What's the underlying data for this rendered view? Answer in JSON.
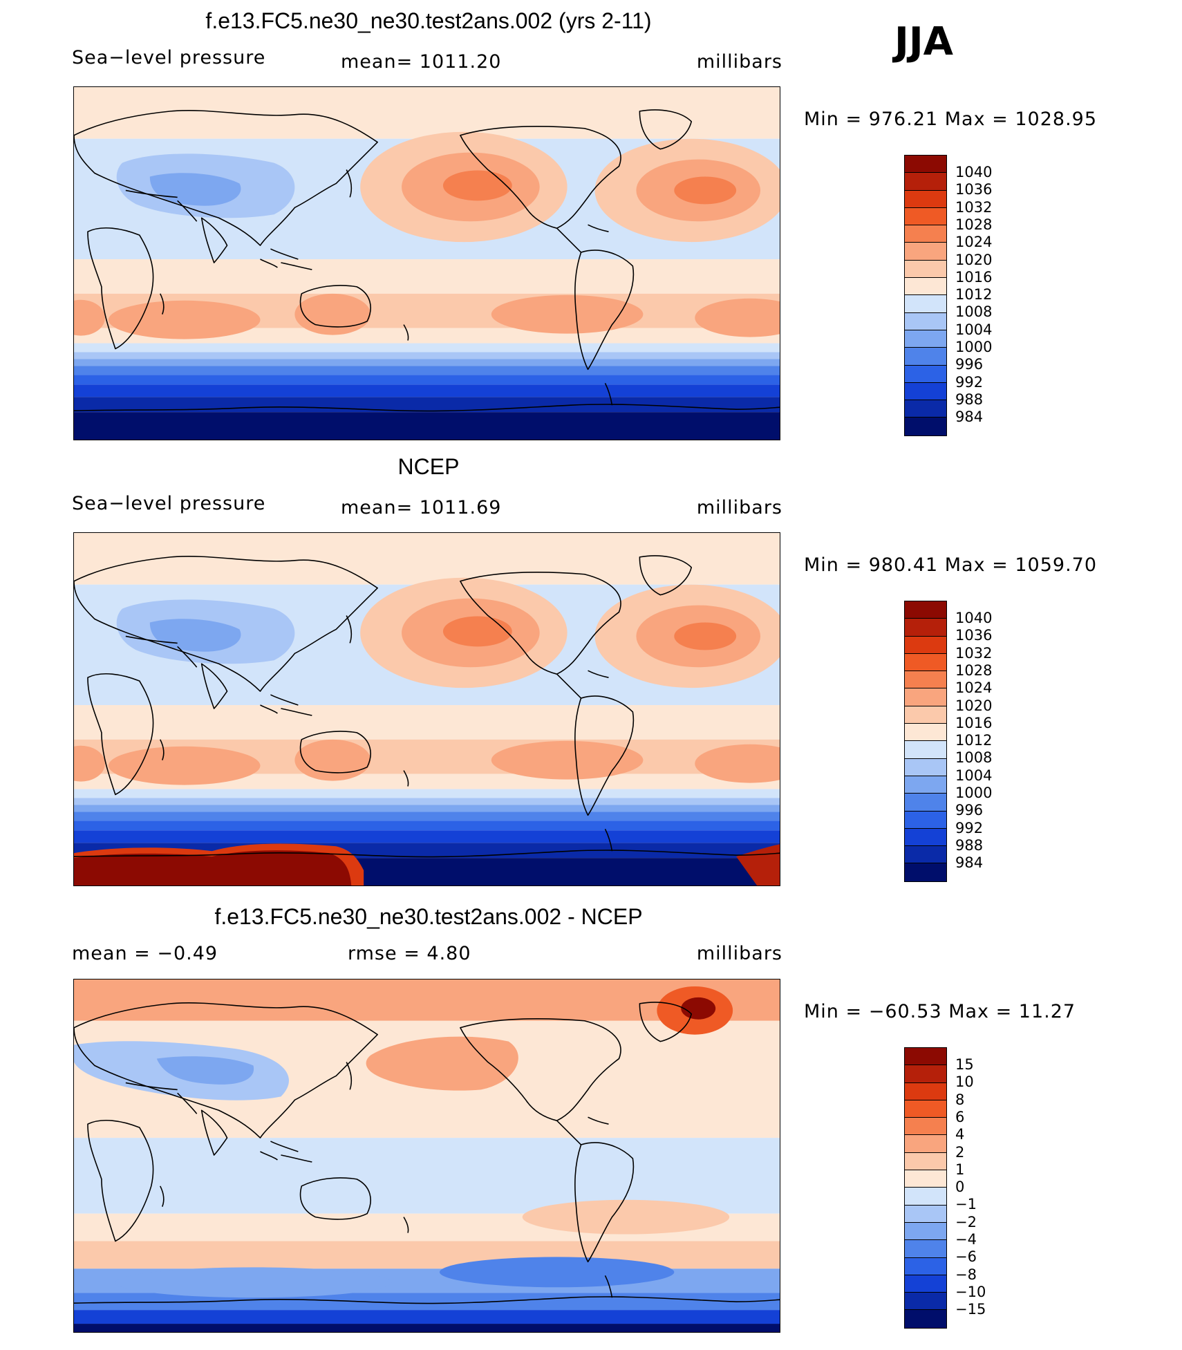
{
  "season": "JJA",
  "colors": {
    "d1": "#000e6b",
    "d2": "#0a2aa8",
    "d3": "#1441d6",
    "d4": "#2c62e6",
    "d5": "#4f83ea",
    "d6": "#7da7f0",
    "d7": "#a9c6f6",
    "d8": "#d2e4fa",
    "w0": "#fde7d5",
    "w1": "#fbc9ab",
    "w2": "#f9a57e",
    "w3": "#f5804f",
    "w4": "#ef5a25",
    "w5": "#dc3a10",
    "w6": "#b5200a",
    "w7": "#8c0a02",
    "land": "#000000"
  },
  "panels": [
    {
      "title": "f.e13.FC5.ne30_ne30.test2ans.002 (yrs 2-11)",
      "left": "Sea−level pressure",
      "center": "mean=  1011.20",
      "right": "millibars",
      "minmax": "Min  =  976.21  Max  =  1028.95",
      "legend_labels": [
        "1040",
        "1036",
        "1032",
        "1028",
        "1024",
        "1020",
        "1016",
        "1012",
        "1008",
        "1004",
        "1000",
        "996",
        "992",
        "988",
        "984"
      ],
      "legend_colors": [
        "w7",
        "w6",
        "w5",
        "w4",
        "w3",
        "w2",
        "w1",
        "w0",
        "d8",
        "d7",
        "d6",
        "d5",
        "d4",
        "d3",
        "d2",
        "d1"
      ]
    },
    {
      "title": "NCEP",
      "left": "Sea−level pressure",
      "center": "mean=  1011.69",
      "right": "millibars",
      "minmax": "Min  =  980.41  Max  =  1059.70",
      "legend_labels": [
        "1040",
        "1036",
        "1032",
        "1028",
        "1024",
        "1020",
        "1016",
        "1012",
        "1008",
        "1004",
        "1000",
        "996",
        "992",
        "988",
        "984"
      ],
      "legend_colors": [
        "w7",
        "w6",
        "w5",
        "w4",
        "w3",
        "w2",
        "w1",
        "w0",
        "d8",
        "d7",
        "d6",
        "d5",
        "d4",
        "d3",
        "d2",
        "d1"
      ]
    },
    {
      "title": "f.e13.FC5.ne30_ne30.test2ans.002 - NCEP",
      "left": "mean  =     −0.49",
      "center": "rmse  =     4.80",
      "right": "millibars",
      "minmax": "Min  =  −60.53  Max  =    11.27",
      "legend_labels": [
        "15",
        "10",
        "8",
        "6",
        "4",
        "2",
        "1",
        "0",
        "−1",
        "−2",
        "−4",
        "−6",
        "−8",
        "−10",
        "−15"
      ],
      "legend_colors": [
        "w7",
        "w6",
        "w5",
        "w4",
        "w3",
        "w2",
        "w1",
        "w0",
        "d8",
        "d7",
        "d6",
        "d5",
        "d4",
        "d3",
        "d2",
        "d1"
      ]
    }
  ]
}
